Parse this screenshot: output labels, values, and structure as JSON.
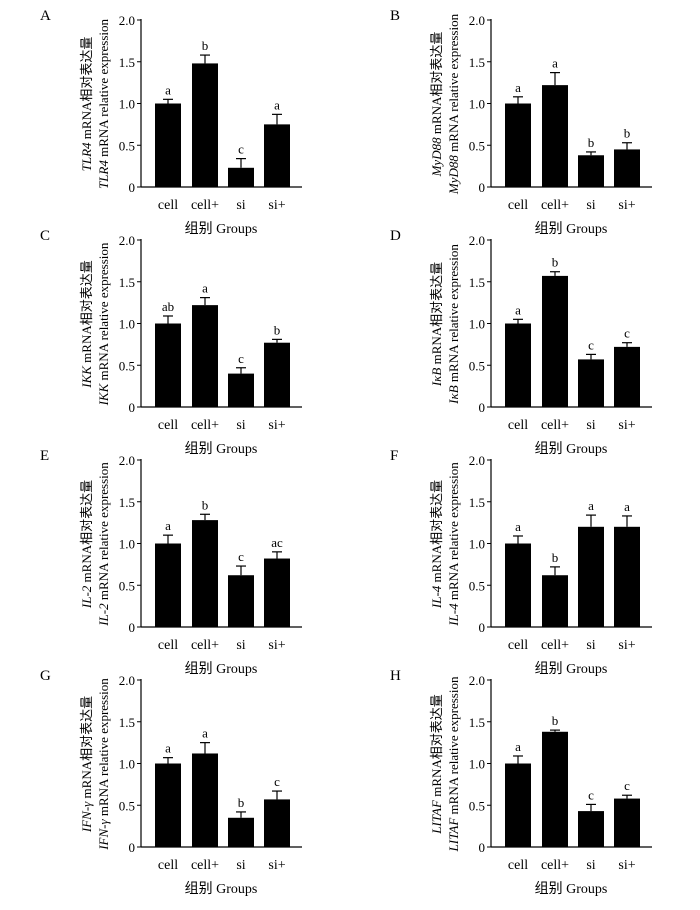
{
  "chart_data": [
    {
      "type": "bar",
      "panel_label": "A",
      "ylabel_italic": "TLR4",
      "ylabel_cn": " mRNA相对表达量",
      "ylabel_en": " mRNA relative expression",
      "xlabel": "组别 Groups",
      "categories": [
        "cell",
        "cell+",
        "si",
        "si+"
      ],
      "values": [
        1.0,
        1.48,
        0.23,
        0.75
      ],
      "errors": [
        0.05,
        0.1,
        0.11,
        0.12
      ],
      "letters": [
        "a",
        "b",
        "c",
        "a"
      ],
      "ylim": [
        0,
        2.0
      ],
      "yticks": [
        "0",
        "0.5",
        "1.0",
        "1.5",
        "2.0"
      ]
    },
    {
      "type": "bar",
      "panel_label": "B",
      "ylabel_italic": "MyD88",
      "ylabel_cn": " mRNA相对表达量",
      "ylabel_en": " mRNA relative expression",
      "xlabel": "组别 Groups",
      "categories": [
        "cell",
        "cell+",
        "si",
        "si+"
      ],
      "values": [
        1.0,
        1.22,
        0.38,
        0.45
      ],
      "errors": [
        0.08,
        0.15,
        0.04,
        0.08
      ],
      "letters": [
        "a",
        "a",
        "b",
        "b"
      ],
      "ylim": [
        0,
        2.0
      ],
      "yticks": [
        "0",
        "0.5",
        "1.0",
        "1.5",
        "2.0"
      ]
    },
    {
      "type": "bar",
      "panel_label": "C",
      "ylabel_italic": "IKK",
      "ylabel_cn": " mRNA相对表达量",
      "ylabel_en": " mRNA relative expression",
      "xlabel": "组别 Groups",
      "categories": [
        "cell",
        "cell+",
        "si",
        "si+"
      ],
      "values": [
        1.0,
        1.22,
        0.4,
        0.77
      ],
      "errors": [
        0.09,
        0.09,
        0.07,
        0.04
      ],
      "letters": [
        "ab",
        "a",
        "c",
        "b"
      ],
      "ylim": [
        0,
        2.0
      ],
      "yticks": [
        "0",
        "0.5",
        "1.0",
        "1.5",
        "2.0"
      ]
    },
    {
      "type": "bar",
      "panel_label": "D",
      "ylabel_italic": "IκB",
      "ylabel_cn": " mRNA相对表达量",
      "ylabel_en": " mRNA relative expression",
      "xlabel": "组别 Groups",
      "categories": [
        "cell",
        "cell+",
        "si",
        "si+"
      ],
      "values": [
        1.0,
        1.57,
        0.57,
        0.72
      ],
      "errors": [
        0.05,
        0.05,
        0.06,
        0.05
      ],
      "letters": [
        "a",
        "b",
        "c",
        "c"
      ],
      "ylim": [
        0,
        2.0
      ],
      "yticks": [
        "0",
        "0.5",
        "1.0",
        "1.5",
        "2.0"
      ]
    },
    {
      "type": "bar",
      "panel_label": "E",
      "ylabel_italic": "IL-2",
      "ylabel_cn": " mRNA相对表达量",
      "ylabel_en": " mRNA relative expression",
      "xlabel": "组别 Groups",
      "categories": [
        "cell",
        "cell+",
        "si",
        "si+"
      ],
      "values": [
        1.0,
        1.28,
        0.62,
        0.82
      ],
      "errors": [
        0.1,
        0.07,
        0.11,
        0.08
      ],
      "letters": [
        "a",
        "b",
        "c",
        "ac"
      ],
      "ylim": [
        0,
        2.0
      ],
      "yticks": [
        "0",
        "0.5",
        "1.0",
        "1.5",
        "2.0"
      ]
    },
    {
      "type": "bar",
      "panel_label": "F",
      "ylabel_italic": "IL-4",
      "ylabel_cn": " mRNA相对表达量",
      "ylabel_en": " mRNA relative expression",
      "xlabel": "组别 Groups",
      "categories": [
        "cell",
        "cell+",
        "si",
        "si+"
      ],
      "values": [
        1.0,
        0.62,
        1.2,
        1.2
      ],
      "errors": [
        0.09,
        0.1,
        0.14,
        0.13
      ],
      "letters": [
        "a",
        "b",
        "a",
        "a"
      ],
      "ylim": [
        0,
        2.0
      ],
      "yticks": [
        "0",
        "0.5",
        "1.0",
        "1.5",
        "2.0"
      ]
    },
    {
      "type": "bar",
      "panel_label": "G",
      "ylabel_italic": "IFN-γ",
      "ylabel_cn": " mRNA相对表达量",
      "ylabel_en": " mRNA relative expression",
      "xlabel": "组别 Groups",
      "categories": [
        "cell",
        "cell+",
        "si",
        "si+"
      ],
      "values": [
        1.0,
        1.12,
        0.35,
        0.57
      ],
      "errors": [
        0.07,
        0.13,
        0.07,
        0.1
      ],
      "letters": [
        "a",
        "a",
        "b",
        "c"
      ],
      "ylim": [
        0,
        2.0
      ],
      "yticks": [
        "0",
        "0.5",
        "1.0",
        "1.5",
        "2.0"
      ]
    },
    {
      "type": "bar",
      "panel_label": "H",
      "ylabel_italic": "LITAF",
      "ylabel_cn": " mRNA相对表达量",
      "ylabel_en": " mRNA relative expression",
      "xlabel": "组别 Groups",
      "categories": [
        "cell",
        "cell+",
        "si",
        "si+"
      ],
      "values": [
        1.0,
        1.38,
        0.43,
        0.58
      ],
      "errors": [
        0.09,
        0.02,
        0.08,
        0.04
      ],
      "letters": [
        "a",
        "b",
        "c",
        "c"
      ],
      "ylim": [
        0,
        2.0
      ],
      "yticks": [
        "0",
        "0.5",
        "1.0",
        "1.5",
        "2.0"
      ]
    }
  ]
}
